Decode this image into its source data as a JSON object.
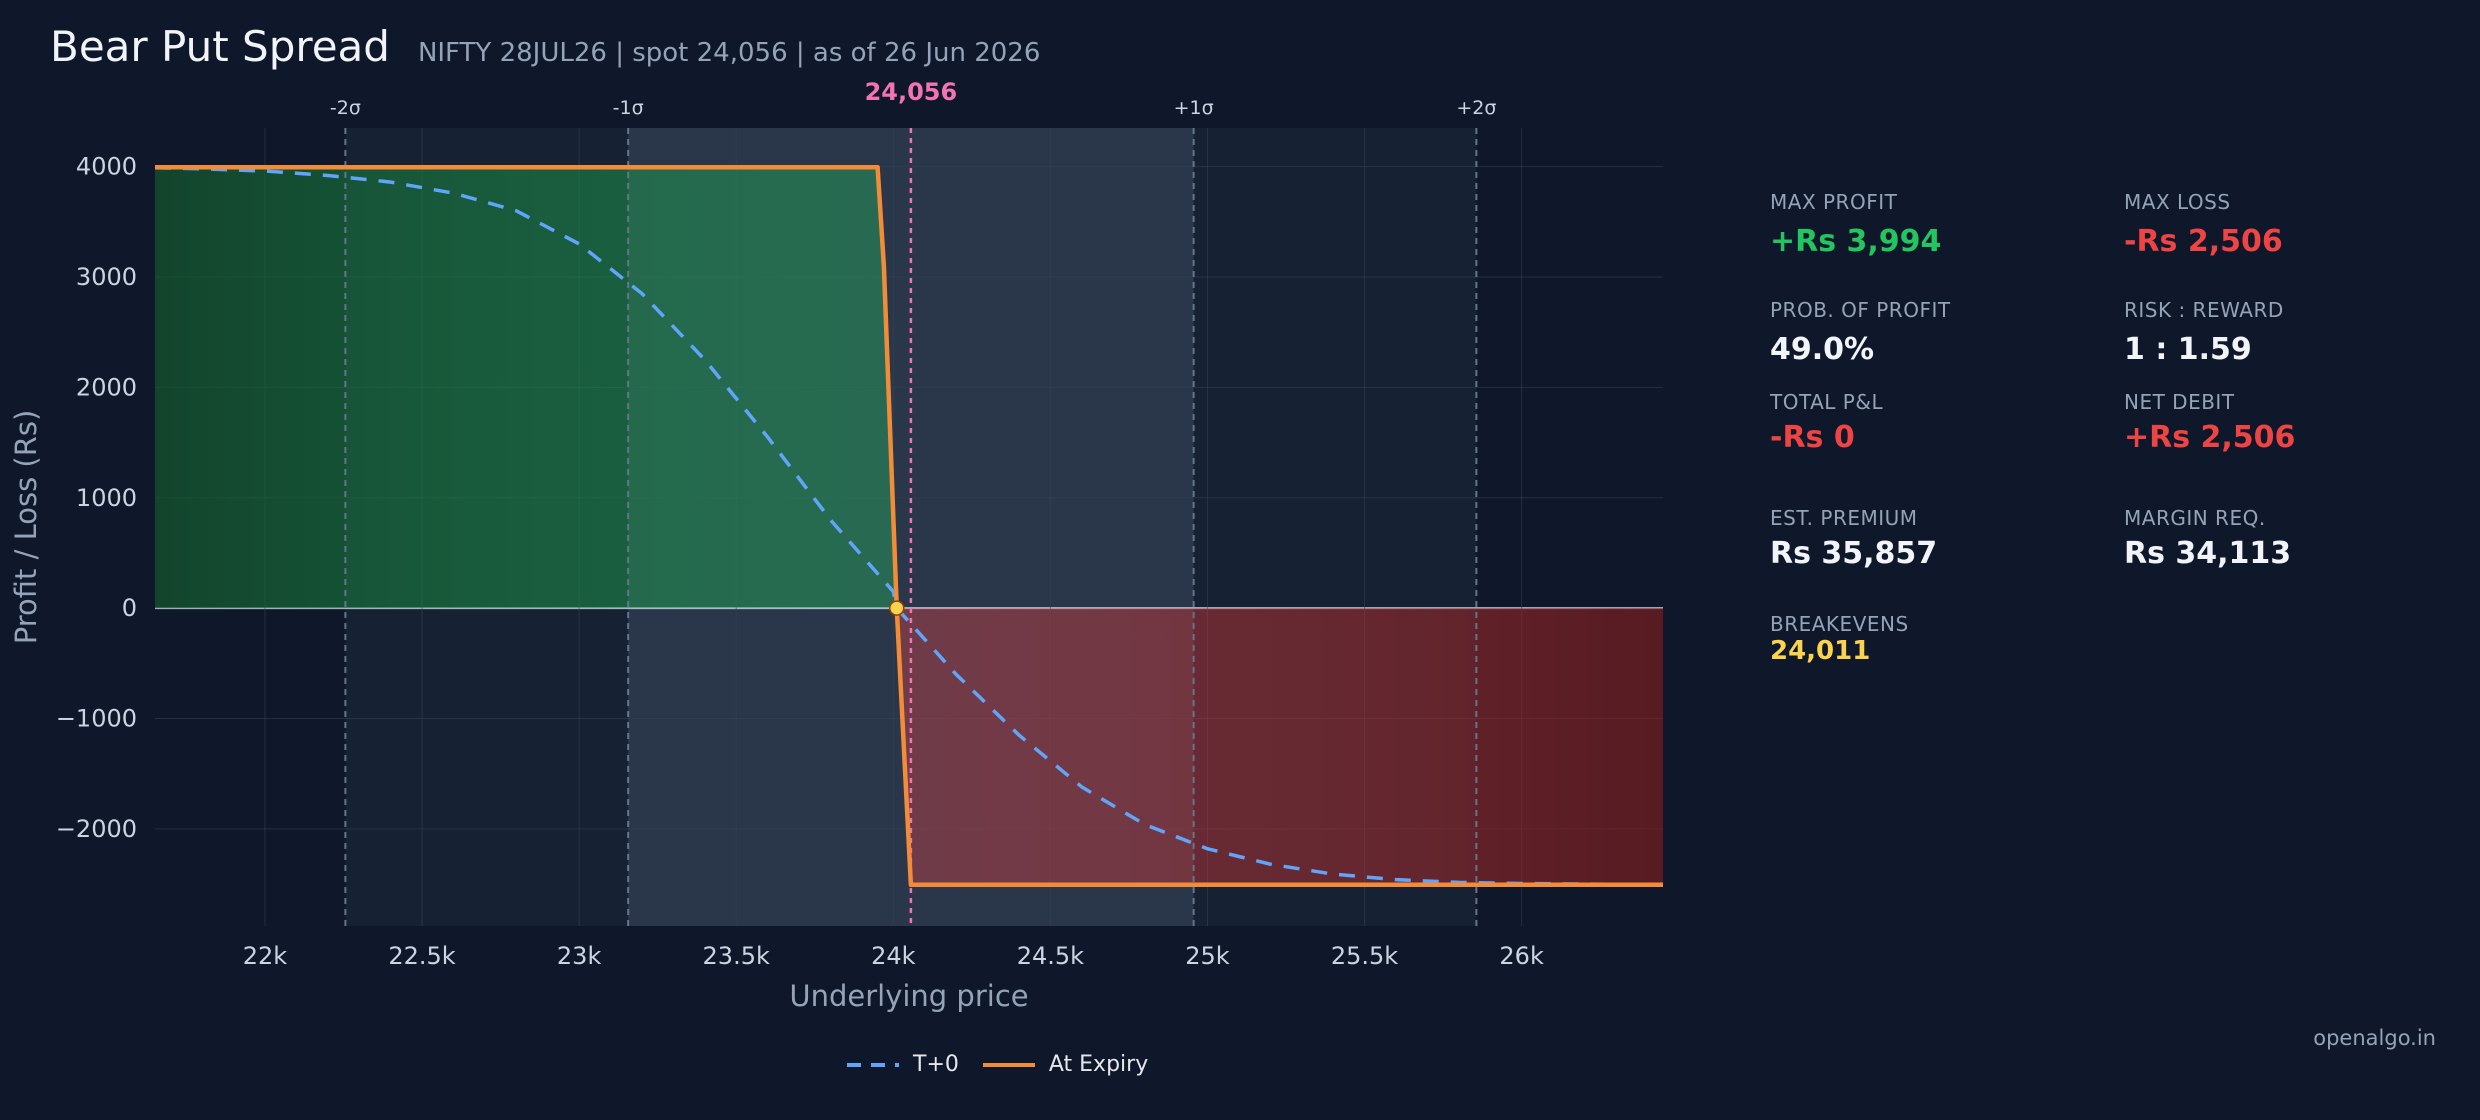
{
  "header": {
    "title": "Bear Put Spread",
    "subtitle": "NIFTY 28JUL26  |  spot 24,056  |  as of 26 Jun 2026"
  },
  "stats": {
    "max_profit": {
      "label": "MAX PROFIT",
      "value": "+Rs 3,994",
      "color": "#22c55e"
    },
    "max_loss": {
      "label": "MAX LOSS",
      "value": "-Rs 2,506",
      "color": "#ef4444"
    },
    "prob_profit": {
      "label": "PROB. OF PROFIT",
      "value": "49.0%",
      "color": "#f1f5f9"
    },
    "risk_reward": {
      "label": "RISK : REWARD",
      "value": "1 : 1.59",
      "color": "#f1f5f9"
    },
    "total_pnl": {
      "label": "TOTAL P&L",
      "value": "-Rs 0",
      "color": "#ef4444"
    },
    "net_debit": {
      "label": "NET DEBIT",
      "value": "+Rs 2,506",
      "color": "#ef4444"
    },
    "est_premium": {
      "label": "EST. PREMIUM",
      "value": "Rs 35,857",
      "color": "#f1f5f9"
    },
    "margin_req": {
      "label": "MARGIN REQ.",
      "value": "Rs 34,113",
      "color": "#f1f5f9"
    },
    "breakevens": {
      "label": "BREAKEVENS",
      "value": "24,011",
      "color": "#fcd34d"
    }
  },
  "brand": "openalgo.in",
  "chart_data": {
    "type": "line",
    "xlabel": "Underlying price",
    "ylabel": "Profit / Loss (Rs)",
    "xlim": [
      21650,
      26450
    ],
    "ylim": [
      -2880,
      4350
    ],
    "x_ticks": [
      22000,
      22500,
      23000,
      23500,
      24000,
      24500,
      25000,
      25500,
      26000
    ],
    "x_tick_labels": [
      "22k",
      "22.5k",
      "23k",
      "23.5k",
      "24k",
      "24.5k",
      "25k",
      "25.5k",
      "26k"
    ],
    "y_ticks": [
      4000,
      3000,
      2000,
      1000,
      0,
      -1000,
      -2000
    ],
    "y_tick_labels": [
      "4000",
      "3000",
      "2000",
      "1000",
      "0",
      "−1000",
      "−2000"
    ],
    "spot": 24056,
    "spot_label": "24,056",
    "breakeven": 24011,
    "sigma_lines": [
      {
        "x": 22256,
        "label": "-2σ"
      },
      {
        "x": 23156,
        "label": "-1σ"
      },
      {
        "x": 24956,
        "label": "+1σ"
      },
      {
        "x": 25856,
        "label": "+2σ"
      }
    ],
    "series": [
      {
        "name": "T+0",
        "style": "dashed",
        "color": "#60a5fa",
        "x": [
          21650,
          21800,
          22000,
          22200,
          22400,
          22600,
          22800,
          23000,
          23200,
          23400,
          23600,
          23800,
          24000,
          24011,
          24200,
          24400,
          24600,
          24800,
          25000,
          25200,
          25400,
          25600,
          25800,
          26000,
          26200,
          26450
        ],
        "y": [
          3990,
          3980,
          3960,
          3920,
          3860,
          3760,
          3600,
          3300,
          2850,
          2250,
          1550,
          800,
          150,
          0,
          -600,
          -1150,
          -1620,
          -1960,
          -2180,
          -2320,
          -2410,
          -2460,
          -2485,
          -2495,
          -2500,
          -2505
        ]
      },
      {
        "name": "At Expiry",
        "style": "solid",
        "color": "#f28c38",
        "x": [
          21650,
          23950,
          23970,
          24011,
          24056,
          26450
        ],
        "y": [
          3994,
          3994,
          3100,
          0,
          -2506,
          -2506
        ]
      }
    ],
    "colors": {
      "profit_fill": "#14532d",
      "loss_fill": "#7f1d1d",
      "spot_line": "#f472b6",
      "breakeven_marker": "#fcd34d"
    }
  }
}
